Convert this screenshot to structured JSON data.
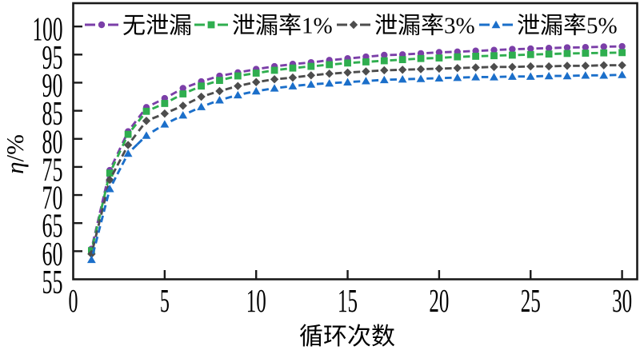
{
  "chart_data": {
    "type": "line",
    "title": "",
    "xlabel": "循环次数",
    "ylabel": "η/%",
    "x": [
      1,
      2,
      3,
      4,
      5,
      6,
      7,
      8,
      9,
      10,
      11,
      12,
      13,
      14,
      15,
      16,
      17,
      18,
      19,
      20,
      21,
      22,
      23,
      24,
      25,
      26,
      27,
      28,
      29,
      30
    ],
    "series": [
      {
        "name": "无泄漏",
        "color": "#7B3FA8",
        "marker": "circle",
        "values": [
          60.4,
          74.4,
          81.3,
          85.6,
          87.2,
          89.0,
          90.2,
          91.2,
          91.8,
          92.4,
          92.9,
          93.3,
          93.6,
          94.0,
          94.3,
          94.6,
          94.9,
          95.0,
          95.2,
          95.4,
          95.5,
          95.65,
          95.8,
          95.95,
          96.05,
          96.15,
          96.25,
          96.3,
          96.4,
          96.45
        ]
      },
      {
        "name": "泄漏率1%",
        "color": "#2FAE4F",
        "marker": "square",
        "values": [
          60.1,
          73.9,
          80.8,
          84.9,
          86.3,
          88.0,
          89.4,
          90.4,
          91.2,
          91.7,
          92.2,
          92.6,
          92.9,
          93.2,
          93.5,
          93.7,
          93.9,
          94.1,
          94.3,
          94.4,
          94.6,
          94.7,
          94.8,
          94.9,
          95.0,
          95.1,
          95.2,
          95.25,
          95.3,
          95.35
        ]
      },
      {
        "name": "泄漏率3%",
        "color": "#4D4D4D",
        "marker": "diamond",
        "values": [
          59.5,
          72.7,
          78.9,
          83.2,
          84.5,
          85.9,
          87.5,
          88.5,
          89.4,
          90.1,
          90.6,
          90.9,
          91.3,
          91.6,
          91.8,
          92.0,
          92.2,
          92.3,
          92.4,
          92.5,
          92.6,
          92.7,
          92.8,
          92.8,
          92.9,
          92.9,
          93.0,
          93.0,
          93.1,
          93.1
        ]
      },
      {
        "name": "泄漏率5%",
        "color": "#1B6FCA",
        "marker": "triangle",
        "values": [
          58.5,
          71.1,
          77.4,
          80.6,
          82.6,
          84.2,
          85.7,
          86.9,
          87.8,
          88.5,
          89.0,
          89.4,
          89.7,
          89.9,
          90.1,
          90.3,
          90.5,
          90.6,
          90.7,
          90.8,
          90.9,
          91.0,
          91.0,
          91.1,
          91.1,
          91.2,
          91.2,
          91.3,
          91.3,
          91.4
        ]
      }
    ],
    "xlim": [
      0,
      30.83
    ],
    "ylim": [
      55,
      104.15
    ],
    "xticks": [
      0,
      5,
      10,
      15,
      20,
      25,
      30
    ],
    "yticks": [
      55,
      60,
      65,
      70,
      75,
      80,
      85,
      90,
      95,
      100
    ],
    "grid": false,
    "legend_position": "top-inside"
  }
}
